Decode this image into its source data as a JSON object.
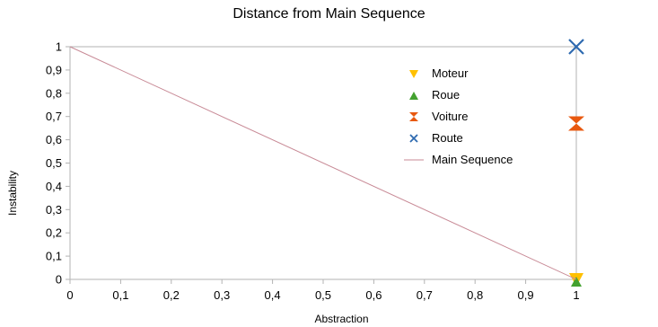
{
  "chart_data": {
    "type": "scatter",
    "title": "Distance from Main Sequence",
    "xlabel": "Abstraction",
    "ylabel": "Instability",
    "xlim": [
      0,
      1
    ],
    "ylim": [
      0,
      1
    ],
    "x_ticks": [
      "0",
      "0,1",
      "0,2",
      "0,3",
      "0,4",
      "0,5",
      "0,6",
      "0,7",
      "0,8",
      "0,9",
      "1"
    ],
    "y_ticks": [
      "0",
      "0,1",
      "0,2",
      "0,3",
      "0,4",
      "0,5",
      "0,6",
      "0,7",
      "0,8",
      "0,9",
      "1"
    ],
    "grid": false,
    "legend_position": "top-right",
    "series": [
      {
        "name": "Moteur",
        "marker": "triangle-down",
        "color": "#ffc000",
        "points": [
          {
            "x": 1,
            "y": 0
          }
        ]
      },
      {
        "name": "Roue",
        "marker": "triangle-up",
        "color": "#43a12f",
        "points": [
          {
            "x": 1,
            "y": 0
          }
        ]
      },
      {
        "name": "Voiture",
        "marker": "hourglass",
        "color": "#e8580f",
        "points": [
          {
            "x": 1,
            "y": 0.67
          }
        ]
      },
      {
        "name": "Route",
        "marker": "x",
        "color": "#2e6ab0",
        "points": [
          {
            "x": 1,
            "y": 1
          }
        ]
      },
      {
        "name": "Main Sequence",
        "marker": "line",
        "color": "#c88a96",
        "points": [
          {
            "x": 0,
            "y": 1
          },
          {
            "x": 1,
            "y": 0
          }
        ]
      }
    ]
  }
}
